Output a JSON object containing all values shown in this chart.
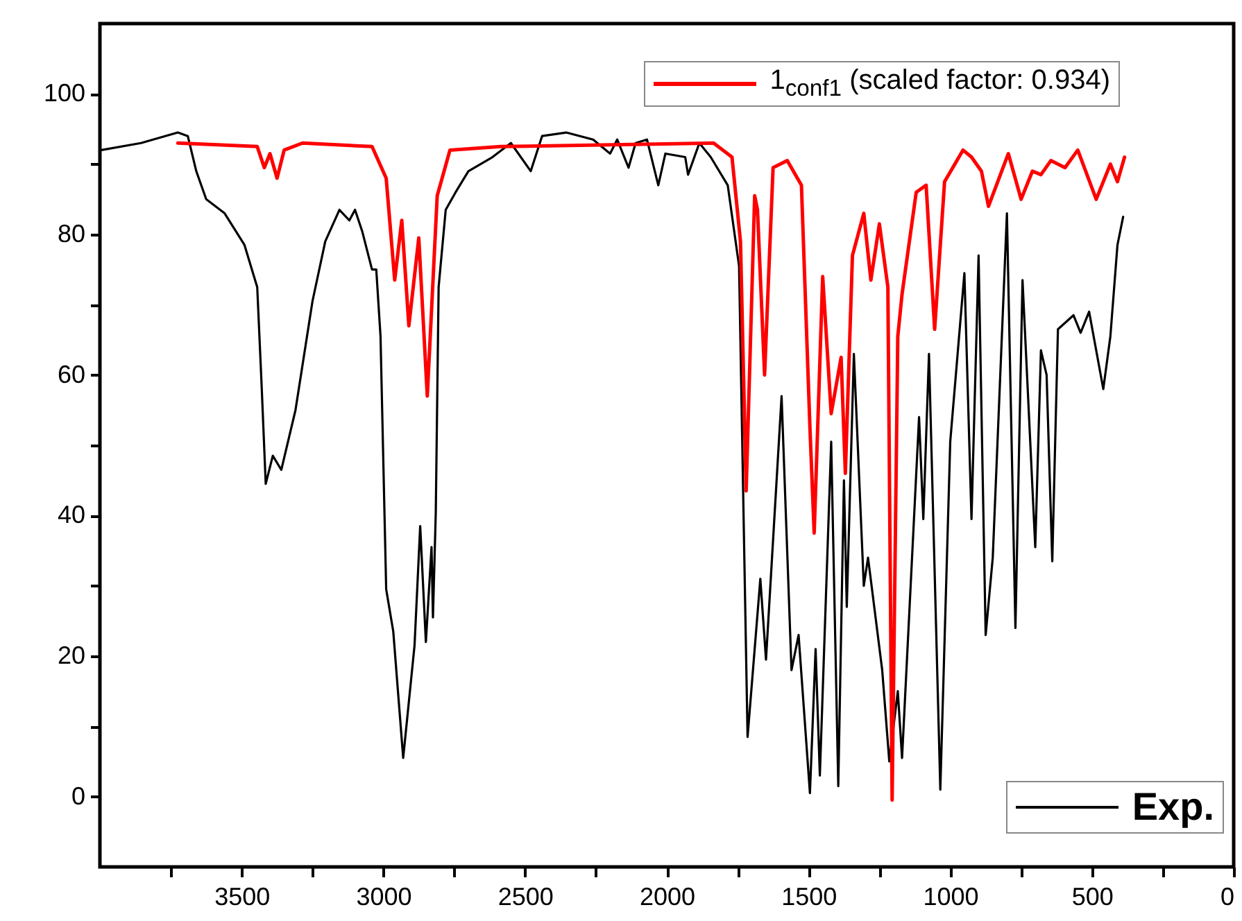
{
  "chart_data": {
    "type": "line",
    "xlim": [
      4000,
      0
    ],
    "ylim": [
      -10,
      110
    ],
    "xticks": [
      {
        "value": 3750,
        "label": null
      },
      3500,
      {
        "value": 3250,
        "label": null
      },
      3000,
      {
        "value": 2750,
        "label": null
      },
      2500,
      {
        "value": 2250,
        "label": null
      },
      2000,
      {
        "value": 1750,
        "label": null
      },
      1500,
      {
        "value": 1250,
        "label": null
      },
      1000,
      {
        "value": 750,
        "label": null
      },
      500,
      {
        "value": 250,
        "label": null
      },
      0
    ],
    "yticks": [
      0,
      {
        "value": 10,
        "label": null
      },
      20,
      {
        "value": 30,
        "label": null
      },
      40,
      {
        "value": 50,
        "label": null
      },
      60,
      {
        "value": 70,
        "label": null
      },
      80,
      {
        "value": 90,
        "label": null
      },
      100
    ],
    "legend": "right",
    "series": [
      {
        "name": "1$_{conf1}$ (scaled factor: 0.934)",
        "color": "#ff0000",
        "x": [
          3725,
          3445,
          3420,
          3400,
          3375,
          3350,
          3285,
          3040,
          2990,
          2960,
          2935,
          2910,
          2875,
          2845,
          2810,
          2765,
          2585,
          1835,
          1770,
          1740,
          1720,
          1690,
          1680,
          1655,
          1625,
          1575,
          1525,
          1495,
          1480,
          1450,
          1420,
          1385,
          1370,
          1345,
          1305,
          1280,
          1250,
          1220,
          1205,
          1185,
          1170,
          1120,
          1085,
          1055,
          1020,
          955,
          925,
          890,
          865,
          795,
          750,
          710,
          680,
          645,
          595,
          550,
          485,
          435,
          410,
          385
        ],
        "values": [
          93,
          92.5,
          89.5,
          91.5,
          88,
          92,
          93,
          92.5,
          88,
          73.5,
          82,
          67,
          79.5,
          57,
          85.5,
          92,
          92.5,
          93,
          91,
          79,
          43.5,
          85.5,
          83.5,
          60,
          89.5,
          90.5,
          87,
          52.5,
          37.5,
          74,
          54.5,
          62.5,
          46,
          77,
          83,
          73.5,
          81.5,
          72.5,
          -0.5,
          65.5,
          71.5,
          86,
          87,
          66.5,
          87.5,
          92,
          91,
          89,
          84,
          91.5,
          85,
          89,
          88.5,
          90.5,
          89.5,
          92,
          85,
          90,
          87.5,
          91
        ]
      },
      {
        "name": "Exp.",
        "color": "#000000",
        "x": [
          3995,
          3855,
          3725,
          3690,
          3660,
          3625,
          3560,
          3490,
          3445,
          3430,
          3415,
          3390,
          3360,
          3310,
          3250,
          3205,
          3155,
          3120,
          3100,
          3075,
          3040,
          3025,
          3010,
          2990,
          2965,
          2930,
          2890,
          2870,
          2850,
          2830,
          2825,
          2815,
          2805,
          2780,
          2745,
          2700,
          2615,
          2550,
          2480,
          2440,
          2355,
          2260,
          2200,
          2175,
          2135,
          2110,
          2070,
          2030,
          2005,
          1935,
          1925,
          1885,
          1845,
          1785,
          1745,
          1715,
          1670,
          1650,
          1595,
          1560,
          1535,
          1495,
          1475,
          1460,
          1420,
          1395,
          1375,
          1365,
          1340,
          1305,
          1290,
          1240,
          1215,
          1185,
          1170,
          1110,
          1095,
          1075,
          1035,
          1000,
          950,
          925,
          900,
          875,
          850,
          800,
          770,
          745,
          700,
          680,
          660,
          640,
          620,
          565,
          540,
          510,
          460,
          435,
          410,
          390
        ],
        "values": [
          92,
          93,
          94.5,
          94,
          89,
          85,
          83,
          78.5,
          72.5,
          59,
          44.5,
          48.5,
          46.5,
          55,
          70.5,
          79,
          83.5,
          82,
          83.5,
          80.5,
          75,
          75,
          65.5,
          29.5,
          23.5,
          5.5,
          21.5,
          38.5,
          22,
          35.5,
          25.5,
          40.5,
          72.5,
          83.5,
          86,
          89,
          91,
          93,
          89,
          94,
          94.5,
          93.5,
          91.5,
          93.5,
          89.5,
          93,
          93.5,
          87,
          91.5,
          91,
          88.5,
          93,
          91,
          87,
          75.5,
          8.5,
          31,
          19.5,
          57,
          18,
          23,
          0.5,
          21,
          3,
          50.5,
          1.5,
          45,
          27,
          63,
          30,
          34,
          18,
          5,
          15,
          5.5,
          54,
          39.5,
          63,
          1,
          50.5,
          74.5,
          39.5,
          77,
          23,
          34,
          83,
          24,
          73.5,
          35.5,
          63.5,
          60,
          33.5,
          66.5,
          68.5,
          66,
          69,
          58,
          65.5,
          78.5,
          82.5
        ]
      }
    ]
  }
}
